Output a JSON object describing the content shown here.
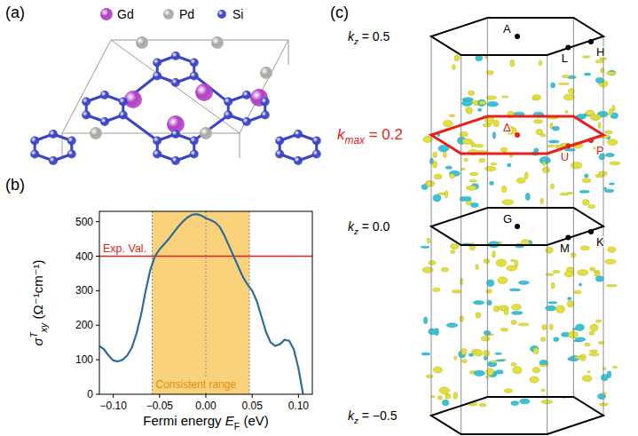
{
  "panels": [
    "(a)",
    "(b)",
    "(c)"
  ],
  "structure": {
    "legend": [
      {
        "name": "Gd",
        "color": "#b23fc6"
      },
      {
        "name": "Pd",
        "color": "#a9a9a2"
      },
      {
        "name": "Si",
        "color": "#3a44c6"
      }
    ]
  },
  "chart_data": {
    "type": "line",
    "x_label": {
      "text": "Fermi energy ",
      "symbol": "E",
      "subscript": "F",
      "unit": " (eV)"
    },
    "y_label": {
      "symbol": "σ",
      "superscript": "T",
      "subscript": "xy",
      "unit": " (Ω⁻¹cm⁻¹)"
    },
    "x": [
      -0.115,
      -0.11,
      -0.105,
      -0.1,
      -0.095,
      -0.09,
      -0.085,
      -0.08,
      -0.075,
      -0.07,
      -0.065,
      -0.06,
      -0.055,
      -0.05,
      -0.045,
      -0.04,
      -0.035,
      -0.03,
      -0.025,
      -0.02,
      -0.015,
      -0.01,
      -0.005,
      0,
      0.005,
      0.01,
      0.015,
      0.02,
      0.025,
      0.03,
      0.035,
      0.04,
      0.045,
      0.05,
      0.055,
      0.06,
      0.065,
      0.07,
      0.075,
      0.08,
      0.085,
      0.09,
      0.095,
      0.1,
      0.105
    ],
    "values": [
      140,
      130,
      112,
      98,
      95,
      100,
      112,
      135,
      175,
      230,
      300,
      360,
      400,
      420,
      435,
      450,
      468,
      485,
      500,
      512,
      520,
      522,
      518,
      510,
      505,
      498,
      485,
      460,
      430,
      400,
      370,
      340,
      318,
      300,
      270,
      225,
      180,
      150,
      140,
      145,
      158,
      155,
      130,
      75,
      0
    ],
    "color": "#2b6e9b",
    "xlim": [
      -0.115,
      0.115
    ],
    "xticks": [
      {
        "value": -0.1,
        "label": "−0.10"
      },
      {
        "value": -0.05,
        "label": "−0.05"
      },
      {
        "value": 0,
        "label": "0.00"
      },
      {
        "value": 0.05,
        "label": "0.05"
      },
      {
        "value": 0.1,
        "label": "0.10"
      }
    ],
    "ylim": [
      0,
      530
    ],
    "yticks": [
      0,
      100,
      200,
      300,
      400,
      500
    ],
    "reference_line": {
      "label": "Exp. Val.",
      "value": 400,
      "color": "#e0231c"
    },
    "consistent_range": {
      "label": "Consistent range",
      "x": [
        -0.058,
        0.047
      ],
      "color": "#fbd27c",
      "label_color": "#e0900c"
    },
    "vlines": [
      -0.058,
      0,
      0.047
    ]
  },
  "brillouin_zone": {
    "planes": [
      {
        "symbol": "k",
        "subscript": "z",
        "text": " = 0.5",
        "points": [
          "A",
          "L",
          "H"
        ],
        "color": "#000000"
      },
      {
        "symbol": "k",
        "subscript": "max",
        "text": " = 0.2",
        "points": [
          "Δ",
          "U",
          "P"
        ],
        "color": "#e8201a"
      },
      {
        "symbol": "k",
        "subscript": "z",
        "text": " = 0.0",
        "points": [
          "G",
          "M",
          "K"
        ],
        "color": "#000000"
      },
      {
        "symbol": "k",
        "subscript": "z",
        "text": " = −0.5",
        "points": [],
        "color": "#000000"
      }
    ]
  }
}
